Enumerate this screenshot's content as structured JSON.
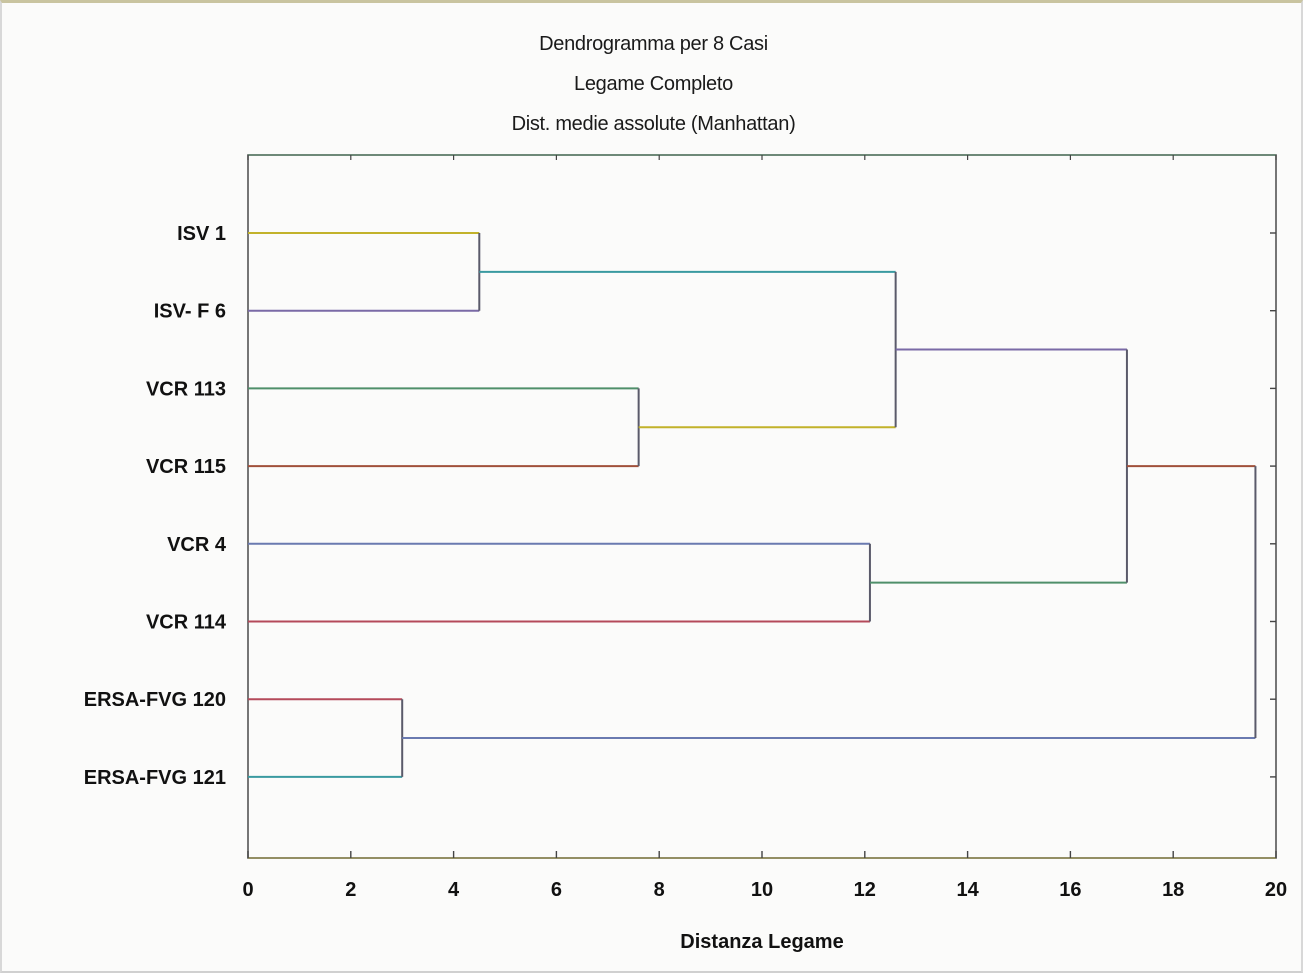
{
  "chart_data": {
    "type": "dendrogram",
    "title": "Dendrogramma per 8 Casi",
    "subtitle_lines": [
      "Legame Completo",
      "Dist. medie assolute (Manhattan)"
    ],
    "xlabel": "Distanza Legame",
    "ylabel": "",
    "xlim": [
      0,
      20
    ],
    "xticks": [
      "0",
      "2",
      "4",
      "6",
      "8",
      "10",
      "12",
      "14",
      "16",
      "18",
      "20"
    ],
    "leaves": [
      "ISV 1",
      "ISV- F 6",
      "VCR 113",
      "VCR 115",
      "VCR 4",
      "VCR 114",
      "ERSA-FVG 120",
      "ERSA-FVG 121"
    ],
    "merges": [
      {
        "left": "ERSA-FVG 120",
        "right": "ERSA-FVG 121",
        "distance": 3.0
      },
      {
        "left": "ISV 1",
        "right": "ISV- F 6",
        "distance": 4.5
      },
      {
        "left": "VCR 113",
        "right": "VCR 115",
        "distance": 7.6
      },
      {
        "left": "VCR 4",
        "right": "VCR 114",
        "distance": 12.1
      },
      {
        "left": "ISV 1 + ISV- F 6",
        "right": "VCR 113 + VCR 115",
        "distance": 12.6
      },
      {
        "left": "ISV 1 + ISV- F 6 + VCR 113 + VCR 115",
        "right": "VCR 4 + VCR 114",
        "distance": 17.1
      },
      {
        "left": "ISV 1 + ISV- F 6 + VCR 113 + VCR 115 + VCR 4 + VCR 114",
        "right": "ERSA-FVG 120 + ERSA-FVG 121",
        "distance": 19.6
      }
    ],
    "grid": false
  }
}
